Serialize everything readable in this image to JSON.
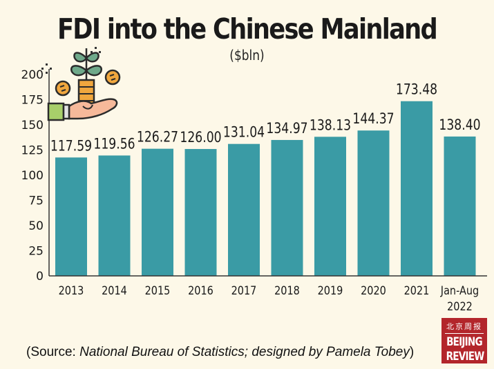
{
  "header": {
    "title": "FDI into the Chinese Mainland",
    "unit": "($bln)"
  },
  "colors": {
    "background": "#fdf8e8",
    "bar": "#3a9ba5",
    "text": "#1a1a1a",
    "logo": "#b3262b"
  },
  "illustration": {
    "icon": "hand-holding-plant-coins-icon"
  },
  "chart_data": {
    "type": "bar",
    "title": "FDI into the Chinese Mainland",
    "subtitle": "($bln)",
    "xlabel": "",
    "ylabel": "",
    "ylim": [
      0,
      200
    ],
    "yticks": [
      0,
      25,
      50,
      75,
      100,
      125,
      150,
      175,
      200
    ],
    "grid": false,
    "categories": [
      "2013",
      "2014",
      "2015",
      "2016",
      "2017",
      "2018",
      "2019",
      "2020",
      "2021",
      "Jan-Aug 2022"
    ],
    "category_lines": [
      [
        "2013"
      ],
      [
        "2014"
      ],
      [
        "2015"
      ],
      [
        "2016"
      ],
      [
        "2017"
      ],
      [
        "2018"
      ],
      [
        "2019"
      ],
      [
        "2020"
      ],
      [
        "2021"
      ],
      [
        "Jan-Aug",
        "2022"
      ]
    ],
    "values": [
      117.59,
      119.56,
      126.27,
      126.0,
      131.04,
      134.97,
      138.13,
      144.37,
      173.48,
      138.4
    ],
    "data_labels": [
      "117.59",
      "119.56",
      "126.27",
      "126.00",
      "131.04",
      "134.97",
      "138.13",
      "144.37",
      "173.48",
      "138.40"
    ]
  },
  "footer": {
    "source_prefix": "(Source: ",
    "source_italic": "National Bureau of Statistics; designed by Pamela Tobey",
    "source_suffix": ")",
    "logo_cn": "北京周报",
    "logo_en_line1": "BEIJING",
    "logo_en_line2": "REVIEW"
  }
}
